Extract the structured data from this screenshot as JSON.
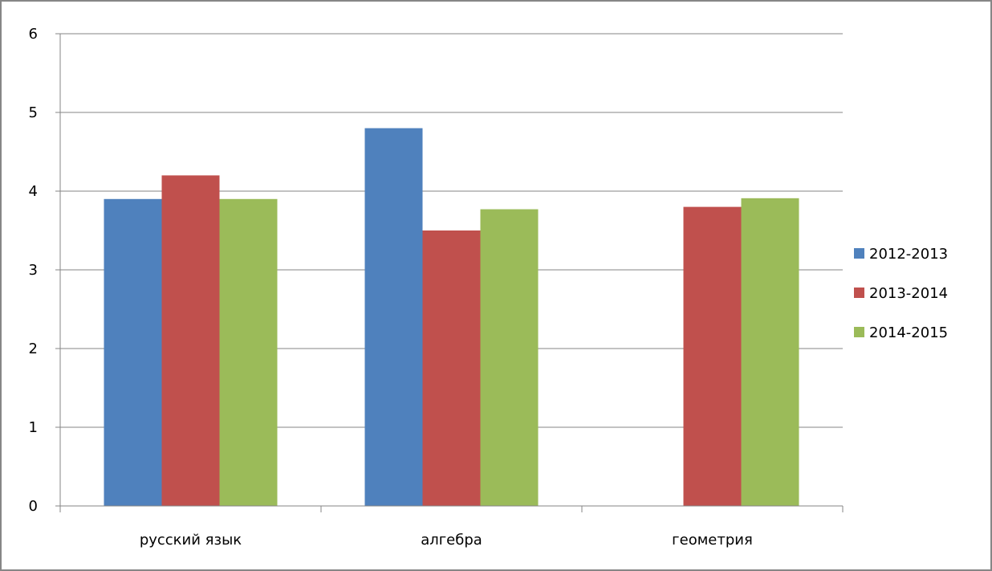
{
  "chart_data": {
    "type": "bar",
    "title": "",
    "xlabel": "",
    "ylabel": "",
    "categories": [
      "русский язык",
      "алгебра",
      "геометрия"
    ],
    "series": [
      {
        "name": "2012-2013",
        "color": "#4F81BD",
        "values": [
          3.9,
          4.8,
          null
        ]
      },
      {
        "name": "2013-2014",
        "color": "#C0504D",
        "values": [
          4.2,
          3.5,
          3.8
        ]
      },
      {
        "name": "2014-2015",
        "color": "#9BBB59",
        "values": [
          3.9,
          3.77,
          3.91
        ]
      }
    ],
    "ylim": [
      0,
      6
    ],
    "yticks": [
      "0",
      "1",
      "2",
      "3",
      "4",
      "5",
      "6"
    ],
    "grid": true,
    "legend_position": "right",
    "gridline_color": "#868686",
    "axis_color": "#868686",
    "frame_color": "#868686"
  }
}
